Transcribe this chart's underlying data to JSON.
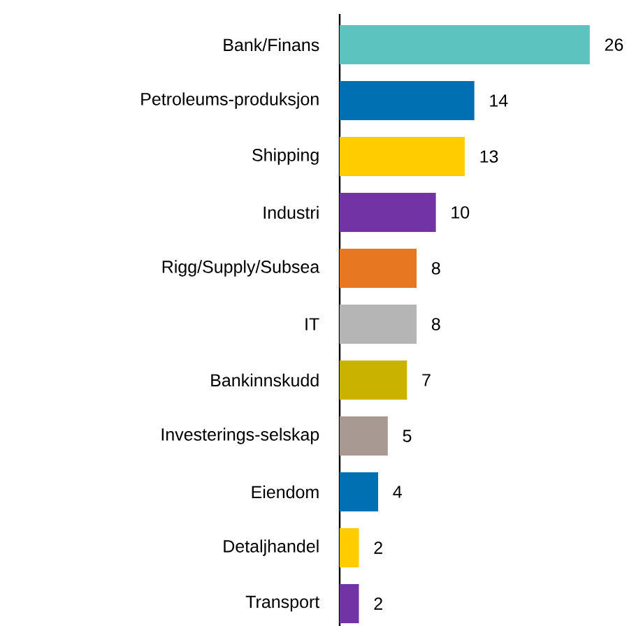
{
  "chart_data": {
    "type": "bar",
    "orientation": "horizontal",
    "data_labels": true,
    "categories": [
      "Bank/Finans",
      "Petroleums-produksjon",
      "Shipping",
      "Industri",
      "Rigg/Supply/Subsea",
      "IT",
      "Bankinnskudd",
      "Investerings-selskap",
      "Eiendom",
      "Detaljhandel",
      "Transport"
    ],
    "values": [
      26,
      14,
      13,
      10,
      8,
      8,
      7,
      5,
      4,
      2,
      2
    ],
    "colors": [
      "#5cc3bf",
      "#0070b3",
      "#ffcc00",
      "#7233a5",
      "#e87722",
      "#b5b5b5",
      "#c9b300",
      "#a89a93",
      "#0070b3",
      "#ffcc00",
      "#7233a5"
    ]
  }
}
